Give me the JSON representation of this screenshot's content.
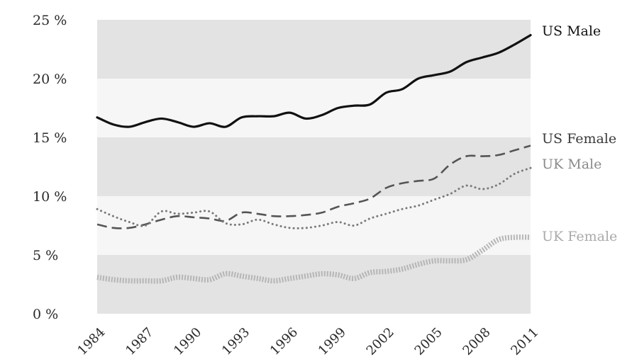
{
  "chart_data": {
    "type": "line",
    "title": "",
    "xlabel": "",
    "ylabel": "",
    "x": [
      1984,
      1985,
      1986,
      1987,
      1988,
      1989,
      1990,
      1991,
      1992,
      1993,
      1994,
      1995,
      1996,
      1997,
      1998,
      1999,
      2000,
      2001,
      2002,
      2003,
      2004,
      2005,
      2006,
      2007,
      2008,
      2009,
      2010,
      2011
    ],
    "xticks": [
      "1984",
      "1987",
      "1990",
      "1993",
      "1996",
      "1999",
      "2002",
      "2005",
      "2008",
      "2011"
    ],
    "xlim": [
      1984,
      2011
    ],
    "yticks": [
      "0 %",
      "5 %",
      "10 %",
      "15 %",
      "20 %",
      "25 %"
    ],
    "ylim": [
      0,
      25
    ],
    "grid": "alternating horizontal bands",
    "legend": "labels at right end of lines",
    "series": [
      {
        "name": "US Male",
        "color": "#111111",
        "style": "solid",
        "values": [
          16.7,
          16.1,
          15.9,
          16.3,
          16.6,
          16.3,
          15.9,
          16.2,
          15.9,
          16.7,
          16.8,
          16.8,
          17.1,
          16.6,
          16.9,
          17.5,
          17.7,
          17.8,
          18.8,
          19.1,
          20.0,
          20.3,
          20.6,
          21.4,
          21.8,
          22.2,
          22.9,
          23.7
        ]
      },
      {
        "name": "US Female",
        "color": "#555555",
        "style": "dashed",
        "values": [
          7.6,
          7.3,
          7.3,
          7.6,
          8.0,
          8.3,
          8.2,
          8.1,
          7.9,
          8.6,
          8.5,
          8.3,
          8.3,
          8.4,
          8.6,
          9.1,
          9.4,
          9.8,
          10.7,
          11.1,
          11.3,
          11.5,
          12.7,
          13.4,
          13.4,
          13.5,
          13.9,
          14.3
        ]
      },
      {
        "name": "UK Male",
        "color": "#7a7a7a",
        "style": "dotted",
        "values": [
          8.9,
          8.3,
          7.8,
          7.5,
          8.7,
          8.5,
          8.6,
          8.7,
          7.7,
          7.6,
          8.0,
          7.6,
          7.3,
          7.3,
          7.5,
          7.8,
          7.5,
          8.1,
          8.5,
          8.9,
          9.2,
          9.7,
          10.2,
          10.9,
          10.6,
          11.0,
          11.9,
          12.4
        ]
      },
      {
        "name": "UK Female",
        "color": "#b5b5b5",
        "style": "thick-dotted",
        "values": [
          3.1,
          2.9,
          2.8,
          2.8,
          2.8,
          3.1,
          3.0,
          2.9,
          3.4,
          3.2,
          3.0,
          2.8,
          3.0,
          3.2,
          3.4,
          3.3,
          3.0,
          3.5,
          3.6,
          3.8,
          4.2,
          4.5,
          4.5,
          4.6,
          5.4,
          6.3,
          6.5,
          6.5
        ]
      }
    ],
    "band_colors": {
      "dark": "#e3e3e3",
      "light": "#f6f6f6"
    },
    "label_colors": {
      "US Male": "#111111",
      "US Female": "#3a3a3a",
      "UK Male": "#8a8a8a",
      "UK Female": "#aaaaaa"
    }
  }
}
